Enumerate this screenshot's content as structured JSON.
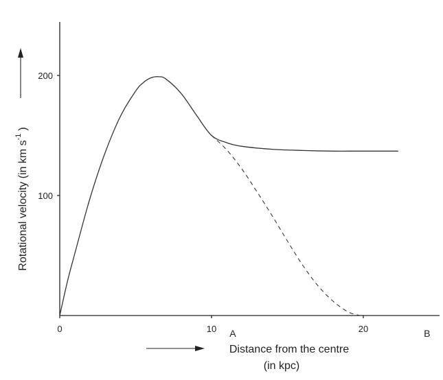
{
  "chart_data": {
    "type": "line",
    "xlabel": "Distance from the centre",
    "xlabel_unit": "(in kpc)",
    "ylabel_main": "Rotational velocity (in km s",
    "ylabel_sup": "-1",
    "ylabel_close": ")",
    "x_ticks": [
      "0",
      "10",
      "20"
    ],
    "y_ticks": [
      "100",
      "200"
    ],
    "xlim": [
      0,
      24
    ],
    "ylim": [
      0,
      245
    ],
    "grid": false,
    "markers": [
      {
        "label": "A",
        "x": 11.4
      },
      {
        "label": "B",
        "x": 24.2
      }
    ],
    "series": [
      {
        "style": "solid",
        "x": [
          0,
          0.5,
          1,
          2,
          3,
          4,
          5,
          5.5,
          6,
          6.5,
          7,
          8,
          9,
          10,
          11,
          12,
          14,
          16,
          18,
          20,
          22.3
        ],
        "y": [
          0,
          28,
          52,
          98,
          136,
          166,
          187,
          194,
          198,
          199,
          197,
          185,
          167,
          150,
          144,
          141,
          138.5,
          137.5,
          137,
          137,
          137
        ]
      },
      {
        "style": "dashed",
        "x": [
          10,
          11,
          12,
          13,
          14,
          15,
          16,
          17,
          18,
          19,
          19.8
        ],
        "y": [
          150,
          138,
          122,
          103,
          83,
          62,
          42,
          25,
          12,
          3,
          0
        ]
      }
    ]
  }
}
